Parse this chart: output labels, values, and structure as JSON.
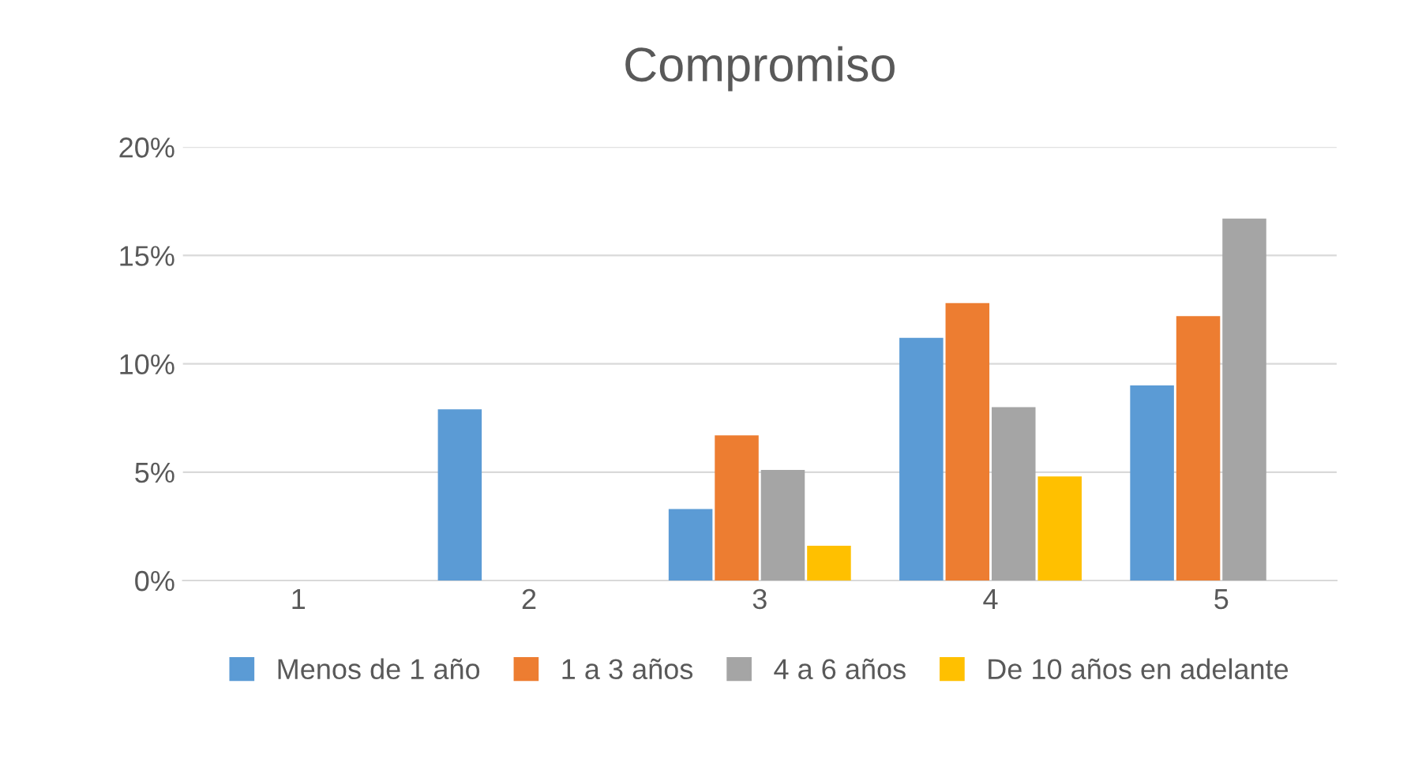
{
  "chart_data": {
    "type": "bar",
    "title": "Compromiso",
    "categories": [
      "1",
      "2",
      "3",
      "4",
      "5"
    ],
    "series": [
      {
        "name": "Menos de 1 año",
        "color": "#5b9bd5",
        "values": [
          0,
          7.9,
          3.3,
          11.2,
          9.0
        ]
      },
      {
        "name": "1 a 3 años",
        "color": "#ed7d31",
        "values": [
          0,
          0,
          6.7,
          12.8,
          12.2
        ]
      },
      {
        "name": "4 a 6 años",
        "color": "#a5a5a5",
        "values": [
          0,
          0,
          5.1,
          8.0,
          16.7
        ]
      },
      {
        "name": "De 10 años en adelante",
        "color": "#ffc000",
        "values": [
          0,
          0,
          1.6,
          4.8,
          0
        ]
      }
    ],
    "ylim": [
      0,
      20
    ],
    "yticks": [
      {
        "value": 0,
        "label": "0%"
      },
      {
        "value": 5,
        "label": "5%"
      },
      {
        "value": 10,
        "label": "10%"
      },
      {
        "value": 15,
        "label": "15%"
      },
      {
        "value": 20,
        "label": "20%"
      }
    ],
    "grid": "y",
    "legend": "bottom"
  }
}
